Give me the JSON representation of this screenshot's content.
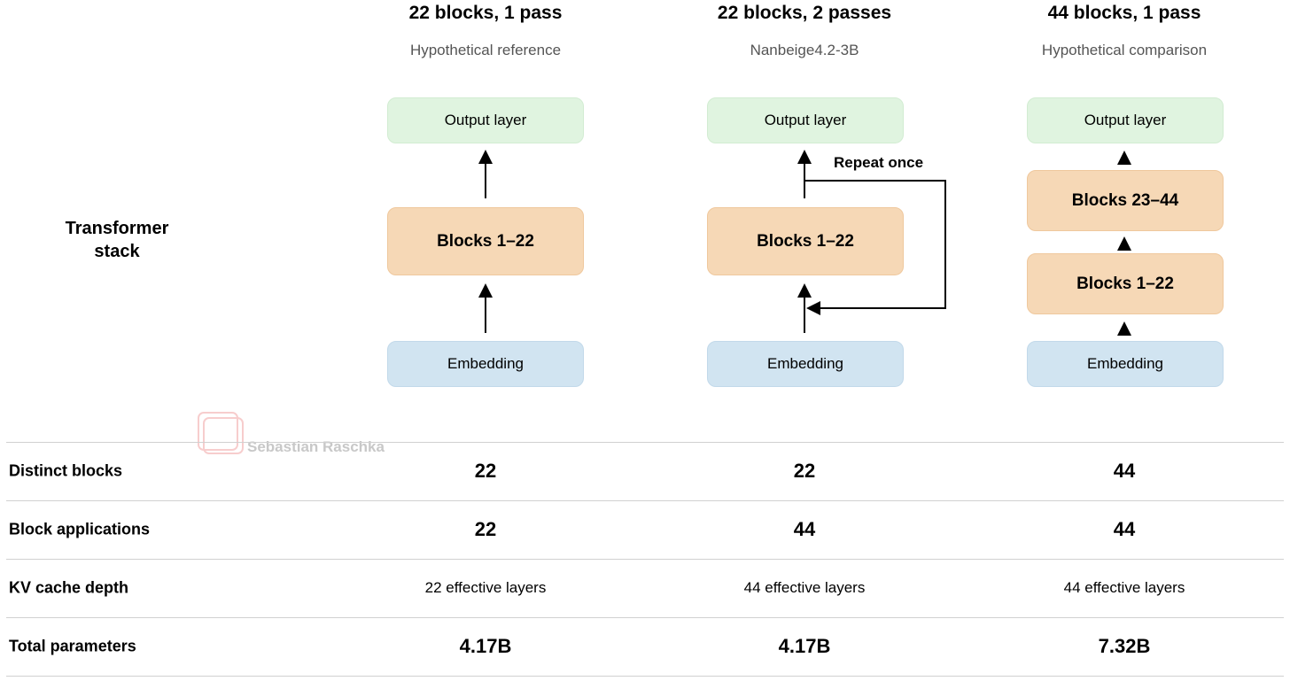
{
  "row_header": "Transformer stack",
  "watermark": "Sebastian Raschka",
  "columns": [
    {
      "title": "22 blocks, 1 pass",
      "subtitle": "Hypothetical reference",
      "output": "Output layer",
      "blocks": [
        "Blocks 1–22"
      ],
      "embedding": "Embedding"
    },
    {
      "title": "22 blocks, 2 passes",
      "subtitle": "Nanbeige4.2-3B",
      "output": "Output layer",
      "blocks": [
        "Blocks 1–22"
      ],
      "embedding": "Embedding",
      "loop_label": "Repeat once"
    },
    {
      "title": "44 blocks, 1 pass",
      "subtitle": "Hypothetical comparison",
      "output": "Output layer",
      "blocks": [
        "Blocks 23–44",
        "Blocks 1–22"
      ],
      "embedding": "Embedding"
    }
  ],
  "table": {
    "rows": [
      {
        "label": "Distinct blocks",
        "values": [
          "22",
          "22",
          "44"
        ]
      },
      {
        "label": "Block applications",
        "values": [
          "22",
          "44",
          "44"
        ]
      },
      {
        "label": "KV cache depth",
        "values": [
          "22 effective layers",
          "44 effective layers",
          "44 effective layers"
        ]
      },
      {
        "label": "Total parameters",
        "values": [
          "4.17B",
          "4.17B",
          "7.32B"
        ]
      }
    ]
  }
}
